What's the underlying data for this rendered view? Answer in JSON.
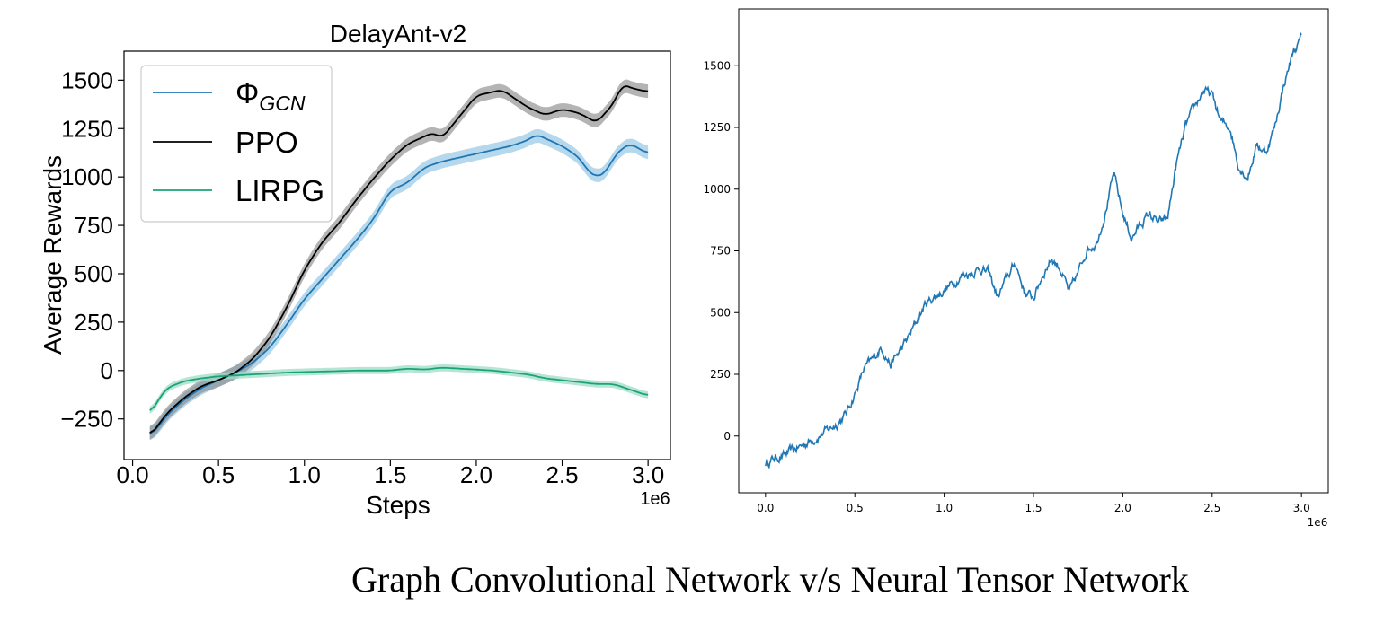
{
  "caption": "Graph Convolutional Network v/s Neural Tensor Network",
  "colors": {
    "phi_gcn": "#1f77b4",
    "ppo": "#000000",
    "lirpg": "#1aa37a",
    "ppo_band": "#8c8c8c",
    "phi_band": "#9ecbe6",
    "lirpg_band": "#9fdcc5"
  },
  "chart_data": [
    {
      "type": "line",
      "title": "DelayAnt-v2",
      "xlabel": "Steps",
      "ylabel": "Average Rewards",
      "x_offset_label": "1e6",
      "xlim": [
        -0.05,
        3.13
      ],
      "ylim": [
        -460,
        1650
      ],
      "xticks": [
        0.0,
        0.5,
        1.0,
        1.5,
        2.0,
        2.5,
        3.0
      ],
      "xtick_labels": [
        "0.0",
        "0.5",
        "1.0",
        "1.5",
        "2.0",
        "2.5",
        "3.0"
      ],
      "yticks": [
        -250,
        0,
        250,
        500,
        750,
        1000,
        1250,
        1500
      ],
      "ytick_labels": [
        "−250",
        "0",
        "250",
        "500",
        "750",
        "1000",
        "1250",
        "1500"
      ],
      "grid": false,
      "legend_position": "top-left",
      "series": [
        {
          "name": "Φ",
          "name_subscript": "GCN",
          "color": "#1f77b4",
          "band": 35,
          "x": [
            0.1,
            0.15,
            0.2,
            0.3,
            0.4,
            0.5,
            0.6,
            0.7,
            0.8,
            0.9,
            1.0,
            1.1,
            1.2,
            1.3,
            1.4,
            1.5,
            1.6,
            1.7,
            1.8,
            1.9,
            2.0,
            2.1,
            2.2,
            2.3,
            2.35,
            2.4,
            2.5,
            2.6,
            2.65,
            2.7,
            2.75,
            2.8,
            2.85,
            2.9,
            3.0
          ],
          "y": [
            -340,
            -290,
            -230,
            -150,
            -90,
            -50,
            -10,
            40,
            120,
            240,
            370,
            470,
            570,
            670,
            780,
            930,
            970,
            1050,
            1080,
            1100,
            1120,
            1140,
            1160,
            1190,
            1220,
            1200,
            1160,
            1100,
            1030,
            1000,
            1020,
            1100,
            1150,
            1170,
            1120
          ]
        },
        {
          "name": "PPO",
          "color": "#000000",
          "band": 35,
          "x": [
            0.1,
            0.15,
            0.2,
            0.3,
            0.4,
            0.5,
            0.6,
            0.7,
            0.8,
            0.9,
            1.0,
            1.1,
            1.2,
            1.3,
            1.4,
            1.5,
            1.6,
            1.7,
            1.75,
            1.8,
            1.9,
            2.0,
            2.1,
            2.15,
            2.2,
            2.3,
            2.4,
            2.5,
            2.6,
            2.7,
            2.8,
            2.85,
            2.9,
            3.0
          ],
          "y": [
            -340,
            -280,
            -220,
            -140,
            -80,
            -50,
            -10,
            60,
            170,
            330,
            520,
            660,
            760,
            880,
            990,
            1090,
            1170,
            1210,
            1230,
            1200,
            1310,
            1420,
            1440,
            1450,
            1420,
            1360,
            1320,
            1350,
            1330,
            1280,
            1380,
            1480,
            1460,
            1440
          ]
        },
        {
          "name": "LIRPG",
          "color": "#1aa37a",
          "band": 18,
          "x": [
            0.1,
            0.15,
            0.2,
            0.3,
            0.4,
            0.5,
            0.7,
            0.9,
            1.1,
            1.3,
            1.5,
            1.6,
            1.7,
            1.8,
            1.9,
            2.0,
            2.1,
            2.2,
            2.3,
            2.4,
            2.5,
            2.6,
            2.7,
            2.8,
            2.9,
            3.0
          ],
          "y": [
            -230,
            -150,
            -90,
            -55,
            -40,
            -30,
            -20,
            -10,
            -5,
            0,
            0,
            10,
            5,
            15,
            10,
            5,
            0,
            -10,
            -20,
            -40,
            -50,
            -60,
            -70,
            -70,
            -100,
            -130
          ]
        }
      ]
    },
    {
      "type": "line",
      "title": "",
      "xlabel": "",
      "ylabel": "",
      "x_offset_label": "1e6",
      "xlim": [
        -0.15,
        3.15
      ],
      "ylim": [
        -230,
        1730
      ],
      "xticks": [
        0.0,
        0.5,
        1.0,
        1.5,
        2.0,
        2.5,
        3.0
      ],
      "xtick_labels": [
        "0.0",
        "0.5",
        "1.0",
        "1.5",
        "2.0",
        "2.5",
        "3.0"
      ],
      "yticks": [
        0,
        250,
        500,
        750,
        1000,
        1250,
        1500
      ],
      "ytick_labels": [
        "0",
        "250",
        "500",
        "750",
        "1000",
        "1250",
        "1500"
      ],
      "grid": false,
      "series": [
        {
          "color": "#1f77b4",
          "x": [
            0.0,
            0.05,
            0.1,
            0.2,
            0.3,
            0.4,
            0.45,
            0.5,
            0.55,
            0.6,
            0.65,
            0.7,
            0.75,
            0.8,
            0.9,
            1.0,
            1.05,
            1.1,
            1.15,
            1.2,
            1.25,
            1.3,
            1.35,
            1.4,
            1.45,
            1.5,
            1.55,
            1.6,
            1.65,
            1.7,
            1.75,
            1.8,
            1.85,
            1.9,
            1.95,
            2.0,
            2.05,
            2.1,
            2.15,
            2.2,
            2.25,
            2.3,
            2.35,
            2.4,
            2.45,
            2.5,
            2.55,
            2.6,
            2.65,
            2.7,
            2.75,
            2.8,
            2.85,
            2.9,
            2.95,
            3.0
          ],
          "y": [
            -110,
            -90,
            -80,
            -40,
            0,
            50,
            90,
            170,
            270,
            310,
            360,
            290,
            340,
            400,
            540,
            590,
            620,
            650,
            660,
            680,
            660,
            560,
            640,
            700,
            580,
            560,
            650,
            720,
            680,
            580,
            660,
            760,
            780,
            900,
            1060,
            900,
            800,
            860,
            900,
            860,
            880,
            1100,
            1250,
            1330,
            1400,
            1380,
            1270,
            1250,
            1090,
            1050,
            1180,
            1150,
            1250,
            1420,
            1550,
            1610
          ]
        }
      ]
    }
  ]
}
